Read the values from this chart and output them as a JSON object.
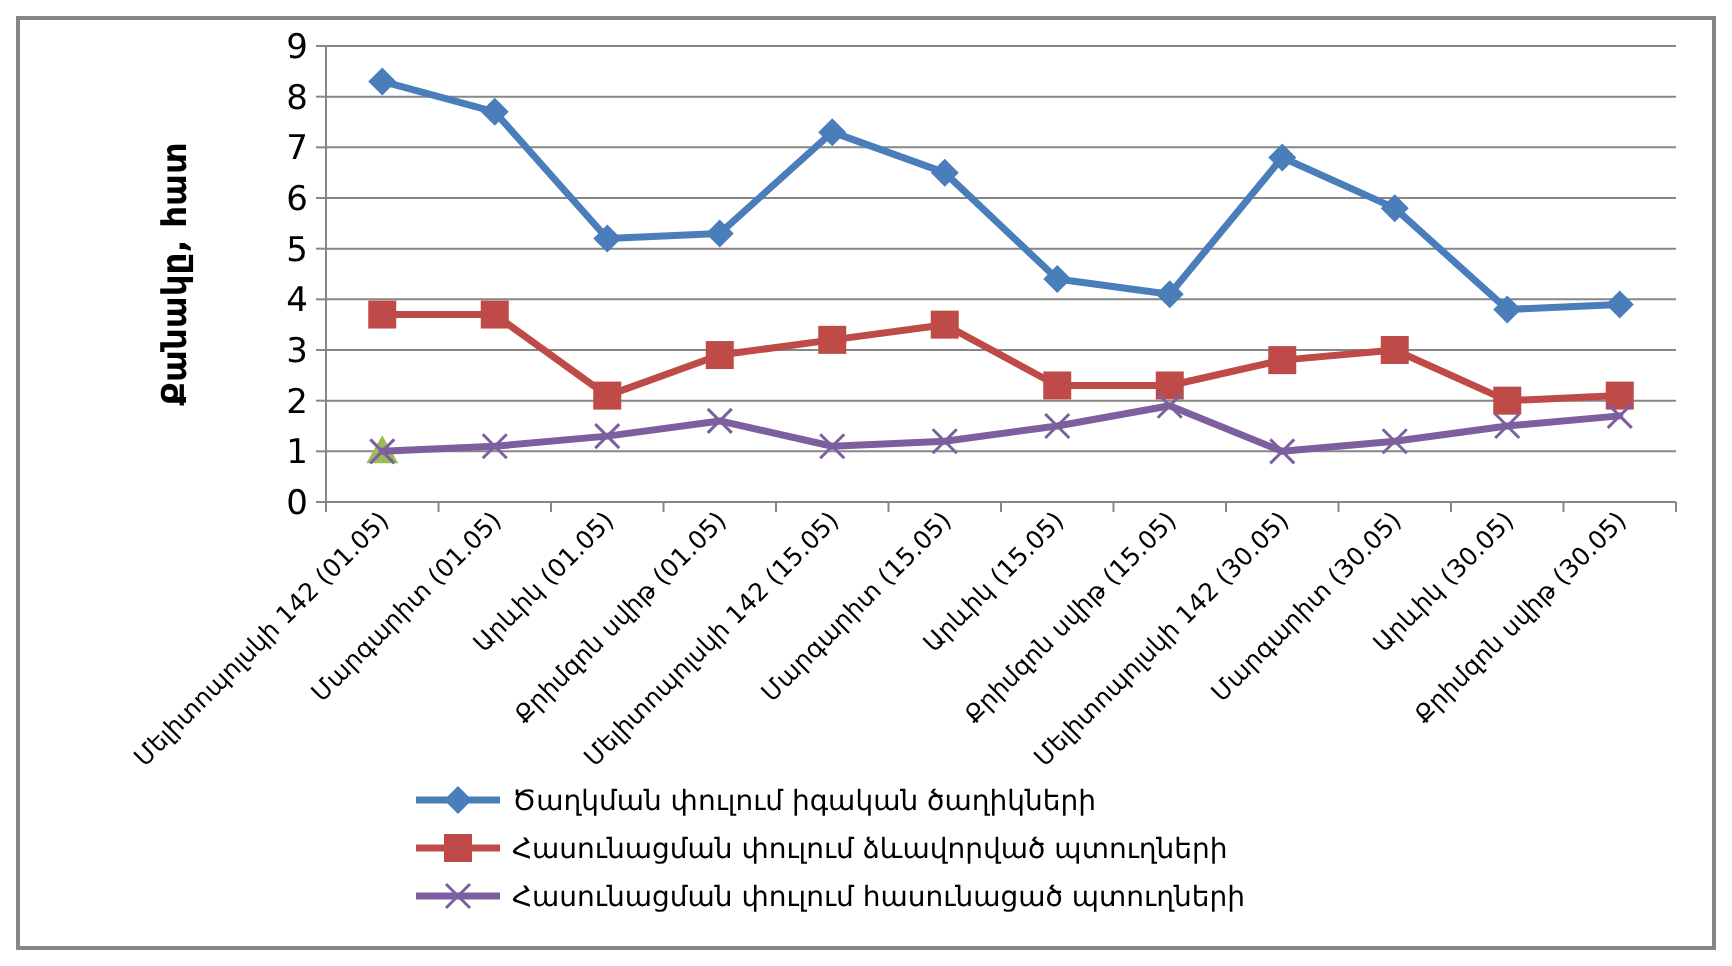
{
  "chart_data": {
    "type": "line",
    "ylabel": "Քանակը, հատ",
    "categories": [
      "Մելիտոպոլսկի 142 (01.05)",
      "Մարգարիտ (01.05)",
      "Արևիկ (01.05)",
      "Քրիմզոն սվիթ (01.05)",
      "Մելիտոպոլսկի 142 (15.05)",
      "Մարգարիտ (15.05)",
      "Արևիկ (15.05)",
      "Քրիմզոն սվիթ (15.05)",
      "Մելիտոպոլսկի 142 (30.05)",
      "Մարգարիտ (30.05)",
      "Արևիկ (30.05)",
      "Քրիմզոն սվիթ (30.05)"
    ],
    "series": [
      {
        "name": "Ծաղկման փուլում իգական ծաղիկների",
        "color": "#4a7ebb",
        "marker": "diamond",
        "values": [
          8.3,
          7.7,
          5.2,
          5.3,
          7.3,
          6.5,
          4.4,
          4.1,
          6.8,
          5.8,
          3.8,
          3.9
        ]
      },
      {
        "name": "Հասունացման փուլում ձևավորված պտուղների",
        "color": "#be4b48",
        "marker": "square",
        "values": [
          3.7,
          3.7,
          2.1,
          2.9,
          3.2,
          3.5,
          2.3,
          2.3,
          2.8,
          3.0,
          2.0,
          2.1
        ]
      },
      {
        "name": "Հասունացման փուլում հասունացած պտուղների",
        "color": "#7d5fa0",
        "marker": "cross",
        "values": [
          1.0,
          1.1,
          1.3,
          1.6,
          1.1,
          1.2,
          1.5,
          1.9,
          1.0,
          1.2,
          1.5,
          1.7
        ]
      },
      {
        "type": "scatter",
        "color": "#9bbb59",
        "marker": "triangle",
        "values": [
          1.0,
          null,
          null,
          null,
          null,
          null,
          null,
          null,
          null,
          null,
          null,
          null
        ]
      }
    ],
    "ylim": [
      0,
      9
    ],
    "yticks": [
      0,
      1,
      2,
      3,
      4,
      5,
      6,
      7,
      8,
      9
    ],
    "grid": "y",
    "legend": "bottom"
  }
}
